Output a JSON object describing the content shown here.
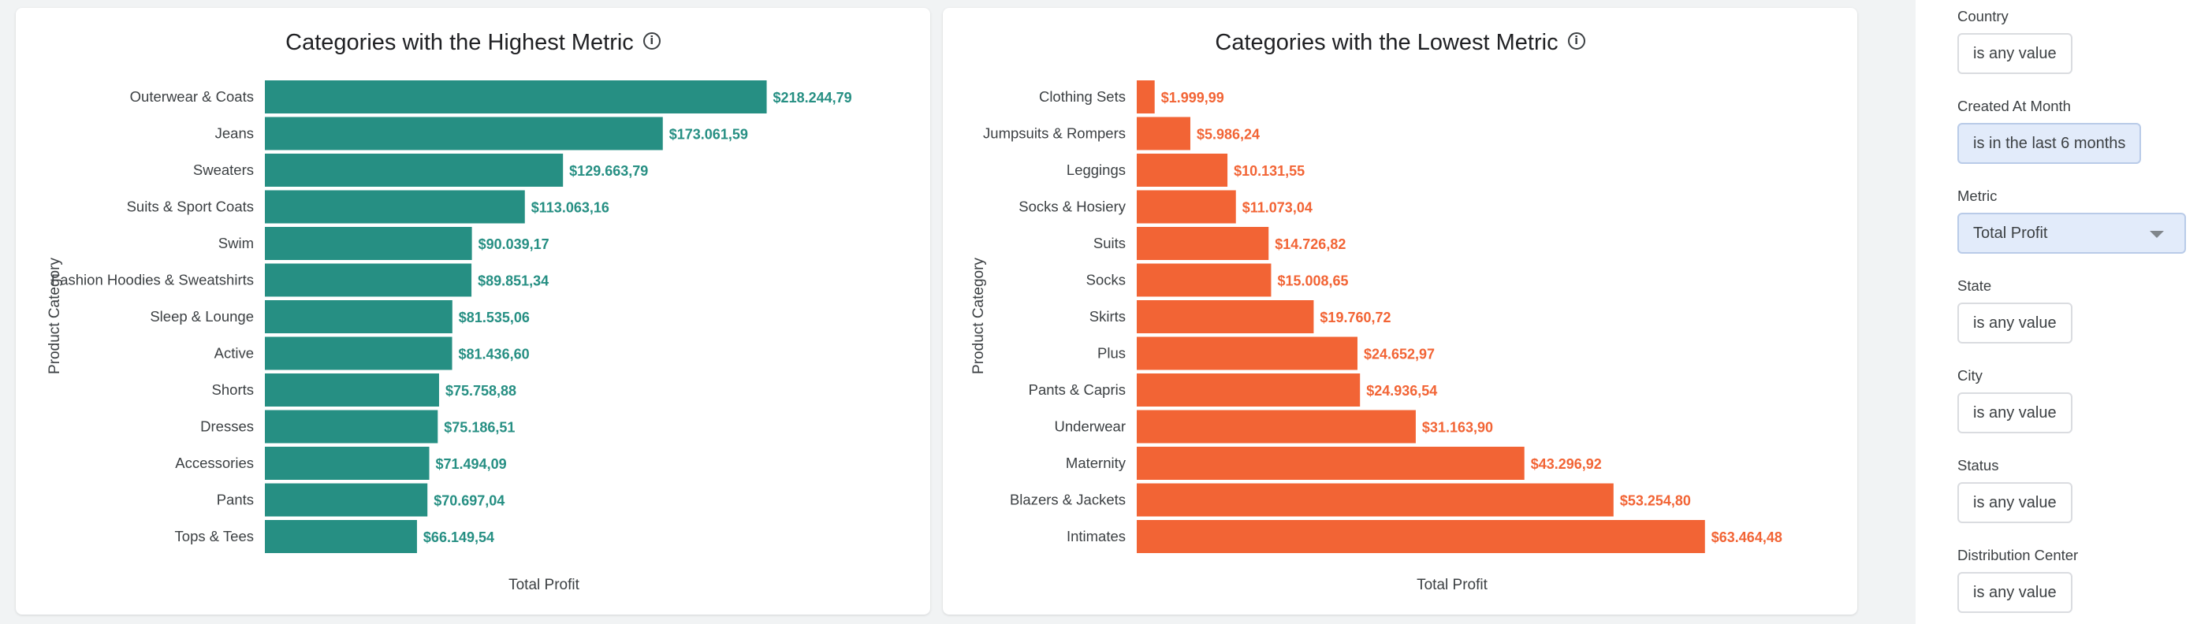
{
  "colors": {
    "high_bar": "#268f83",
    "low_bar": "#f26435",
    "accent_filter": "#e2ebfa"
  },
  "charts": {
    "high": {
      "title": "Categories with the Highest Metric",
      "ylabel": "Product Category",
      "xlabel": "Total Profit",
      "info_icon": "info-icon"
    },
    "low": {
      "title": "Categories with the Lowest Metric",
      "ylabel": "Product Category",
      "xlabel": "Total Profit",
      "info_icon": "info-icon"
    }
  },
  "chart_data": [
    {
      "type": "bar",
      "orientation": "horizontal",
      "title": "Categories with the Highest Metric",
      "xlabel": "Total Profit",
      "ylabel": "Product Category",
      "xlim": [
        0,
        240000
      ],
      "grid": false,
      "categories": [
        "Outerwear & Coats",
        "Jeans",
        "Sweaters",
        "Suits & Sport Coats",
        "Swim",
        "Fashion Hoodies & Sweatshirts",
        "Sleep & Lounge",
        "Active",
        "Shorts",
        "Dresses",
        "Accessories",
        "Pants",
        "Tops & Tees"
      ],
      "values": [
        218244.79,
        173061.59,
        129663.79,
        113063.16,
        90039.17,
        89851.34,
        81535.06,
        81436.6,
        75758.88,
        75186.51,
        71494.09,
        70697.04,
        66149.54
      ],
      "labels": [
        "$218.244,79",
        "$173.061,59",
        "$129.663,79",
        "$113.063,16",
        "$90.039,17",
        "$89.851,34",
        "$81.535,06",
        "$81.436,60",
        "$75.758,88",
        "$75.186,51",
        "$71.494,09",
        "$70.697,04",
        "$66.149,54"
      ]
    },
    {
      "type": "bar",
      "orientation": "horizontal",
      "title": "Categories with the Lowest Metric",
      "xlabel": "Total Profit",
      "ylabel": "Product Category",
      "xlim": [
        0,
        70000
      ],
      "grid": false,
      "categories": [
        "Clothing Sets",
        "Jumpsuits & Rompers",
        "Leggings",
        "Socks & Hosiery",
        "Suits",
        "Socks",
        "Skirts",
        "Plus",
        "Pants & Capris",
        "Underwear",
        "Maternity",
        "Blazers & Jackets",
        "Intimates"
      ],
      "values": [
        1999.99,
        5986.24,
        10131.55,
        11073.04,
        14726.82,
        15008.65,
        19760.72,
        24652.97,
        24936.54,
        31163.9,
        43296.92,
        53254.8,
        63464.48
      ],
      "labels": [
        "$1.999,99",
        "$5.986,24",
        "$10.131,55",
        "$11.073,04",
        "$14.726,82",
        "$15.008,65",
        "$19.760,72",
        "$24.652,97",
        "$24.936,54",
        "$31.163,90",
        "$43.296,92",
        "$53.254,80",
        "$63.464,48"
      ]
    }
  ],
  "filters": [
    {
      "label": "Country",
      "value": "is any value",
      "active": false,
      "dropdown": false
    },
    {
      "label": "Created At Month",
      "value": "is in the last 6 months",
      "active": true,
      "dropdown": false
    },
    {
      "label": "Metric",
      "value": "Total Profit",
      "active": true,
      "dropdown": true
    },
    {
      "label": "State",
      "value": "is any value",
      "active": false,
      "dropdown": false
    },
    {
      "label": "City",
      "value": "is any value",
      "active": false,
      "dropdown": false
    },
    {
      "label": "Status",
      "value": "is any value",
      "active": false,
      "dropdown": false
    },
    {
      "label": "Distribution Center",
      "value": "is any value",
      "active": false,
      "dropdown": false
    }
  ]
}
